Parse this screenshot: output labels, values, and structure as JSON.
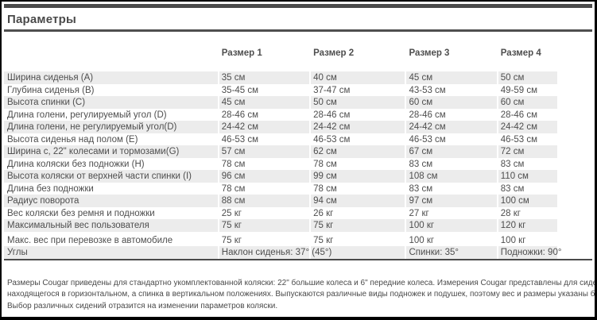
{
  "title": "Параметры",
  "table": {
    "columns": [
      "Размер 1",
      "Размер 2",
      "Размер 3",
      "Размер 4"
    ],
    "rows": [
      {
        "label": "Ширина сиденья (A)",
        "values": [
          "35 см",
          "40 см",
          "45 см",
          "50 см"
        ]
      },
      {
        "label": "Глубина сиденья (B)",
        "values": [
          "35-45 см",
          "37-47 см",
          "43-53 см",
          "49-59 см"
        ]
      },
      {
        "label": "Высота спинки (C)",
        "values": [
          "45 см",
          "50 см",
          "60 см",
          "60 см"
        ]
      },
      {
        "label": "Длина голени, регулируемый угол (D)",
        "values": [
          "28-46 см",
          "28-46 см",
          "28-46 см",
          "28-46 см"
        ]
      },
      {
        "label": "Длина голени, не регулируемый угол(D)",
        "values": [
          "24-42 см",
          "24-42 см",
          "24-42 см",
          "24-42 см"
        ]
      },
      {
        "label": "Высота сиденья над полом (E)",
        "values": [
          "46-53 см",
          "46-53 см",
          "46-53 см",
          "46-53 см"
        ]
      },
      {
        "label": "Ширина с, 22\" колесами и тормозами(G)",
        "values": [
          "57 см",
          "62 см",
          "67 см",
          "72 см"
        ]
      },
      {
        "label": "Длина коляски без подножки (H)",
        "values": [
          "78 см",
          "78 см",
          "83 см",
          "83 см"
        ]
      },
      {
        "label": "Высота коляски от верхней части спинки (I)",
        "values": [
          "96 см",
          "99 см",
          "108 см",
          "110 см"
        ]
      },
      {
        "label": "Длина без подножки",
        "values": [
          "78 см",
          "78 см",
          "83 см",
          "83 см"
        ]
      },
      {
        "label": "Радиус поворота",
        "values": [
          "88 см",
          "94 см",
          "97 см",
          "100 см"
        ]
      },
      {
        "label": "Вес коляски без ремня и подножки",
        "values": [
          "25 кг",
          "26 кг",
          "27 кг",
          "28 кг"
        ]
      },
      {
        "label": "Максимальный вес пользователя",
        "values": [
          "75 кг",
          "75 кг",
          "100 кг",
          "120 кг"
        ]
      },
      {
        "label": "Макс. вес при перевозке в автомобиле",
        "values": [
          "75 кг",
          "75 кг",
          "100 кг",
          "100 кг"
        ]
      },
      {
        "label": "Углы",
        "values": [
          "Наклон сиденья: 37° (45°)",
          "",
          "Спинки: 35°",
          "Подножки: 90°"
        ]
      }
    ]
  },
  "footer_lines": [
    "Размеры Cougar приведены для стандартно укомплектованной коляски: 22\" большие колеса и 6\" передние колеса. Измерения Cougar представлены для сиденья,",
    "находящегося в горизонтальном, а спинка в вертикальном положениях. Выпускаются различные виды подножек и подушек, поэтому вес и размеры указаны без них.",
    "Выбор различных сидений отразится на изменении параметров коляски."
  ],
  "colors": {
    "rule": "#4a4a4a",
    "stripe": "#ececec",
    "text": "#4e4e4e",
    "frame": "#000000"
  }
}
